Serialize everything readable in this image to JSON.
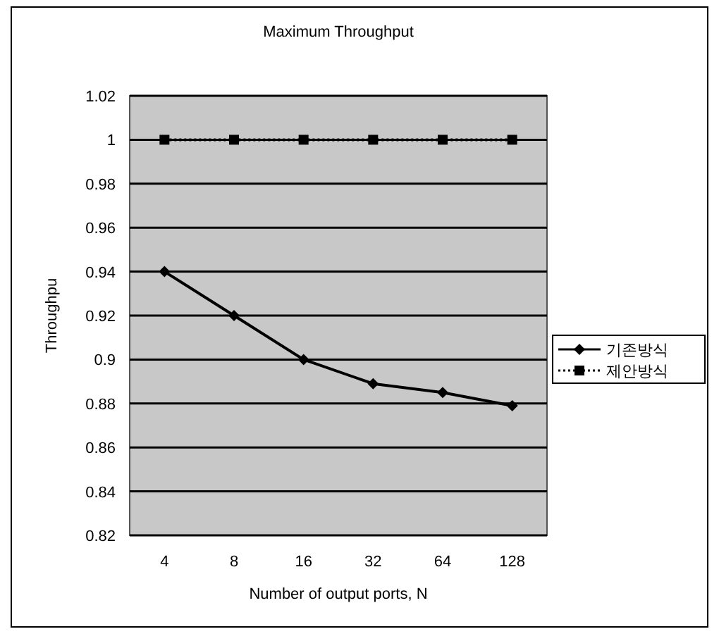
{
  "chart_data": {
    "type": "line",
    "title": "Maximum Throughput",
    "xlabel": "Number of output ports, N",
    "ylabel": "Throughpu",
    "categories": [
      "4",
      "8",
      "16",
      "32",
      "64",
      "128"
    ],
    "series": [
      {
        "name": "기존방식",
        "color": "#000000",
        "values": [
          0.94,
          0.92,
          0.9,
          0.889,
          0.885,
          0.879
        ],
        "marker": "diamond",
        "line_style": "solid"
      },
      {
        "name": "제안방식",
        "color": "#000000",
        "values": [
          1,
          1,
          1,
          1,
          1,
          1
        ],
        "marker": "square",
        "line_style": "dotted"
      }
    ],
    "ylim": [
      0.82,
      1.02
    ],
    "yticks": [
      0.82,
      0.84,
      0.86,
      0.88,
      0.9,
      0.92,
      0.94,
      0.96,
      0.98,
      1,
      1.02
    ],
    "grid": "y",
    "legend": "right"
  }
}
